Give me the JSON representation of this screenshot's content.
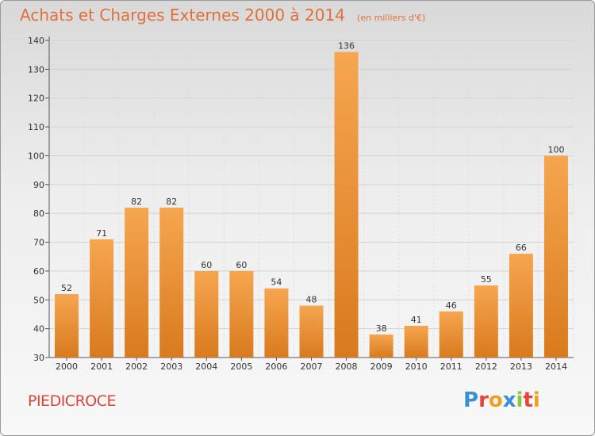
{
  "header": {
    "title": "Achats et Charges Externes 2000 à 2014",
    "subtitle": "(en milliers d'€)"
  },
  "footer": {
    "commune": "PIEDICROCE",
    "logo": "Proxiti"
  },
  "colors": {
    "title": "#e0703a",
    "bar_light": "#f6a650",
    "bar_dark": "#d97a1e",
    "commune": "#d8463c",
    "logo_letters": [
      "#3a8fd6",
      "#e8423a",
      "#f0a020",
      "#3a8fd6",
      "#8cc63f",
      "#e8423a",
      "#f0a020"
    ]
  },
  "chart_data": {
    "type": "bar",
    "title": "Achats et Charges Externes 2000 à 2014",
    "subtitle": "(en milliers d'€)",
    "categories": [
      "2000",
      "2001",
      "2002",
      "2003",
      "2004",
      "2005",
      "2006",
      "2007",
      "2008",
      "2009",
      "2010",
      "2011",
      "2012",
      "2013",
      "2014"
    ],
    "values": [
      52,
      71,
      82,
      82,
      60,
      60,
      54,
      48,
      136,
      38,
      41,
      46,
      55,
      66,
      100
    ],
    "data_labels": [
      "52",
      "71",
      "82",
      "82",
      "60",
      "60",
      "54",
      "48",
      "136",
      "38",
      "41",
      "46",
      "55",
      "66",
      "100"
    ],
    "ylim": [
      30,
      140
    ],
    "yticks": [
      "30",
      "40",
      "50",
      "60",
      "70",
      "80",
      "90",
      "100",
      "110",
      "120",
      "130",
      "140"
    ],
    "xlabel": "",
    "ylabel": "",
    "grid": true,
    "legend": "none"
  }
}
